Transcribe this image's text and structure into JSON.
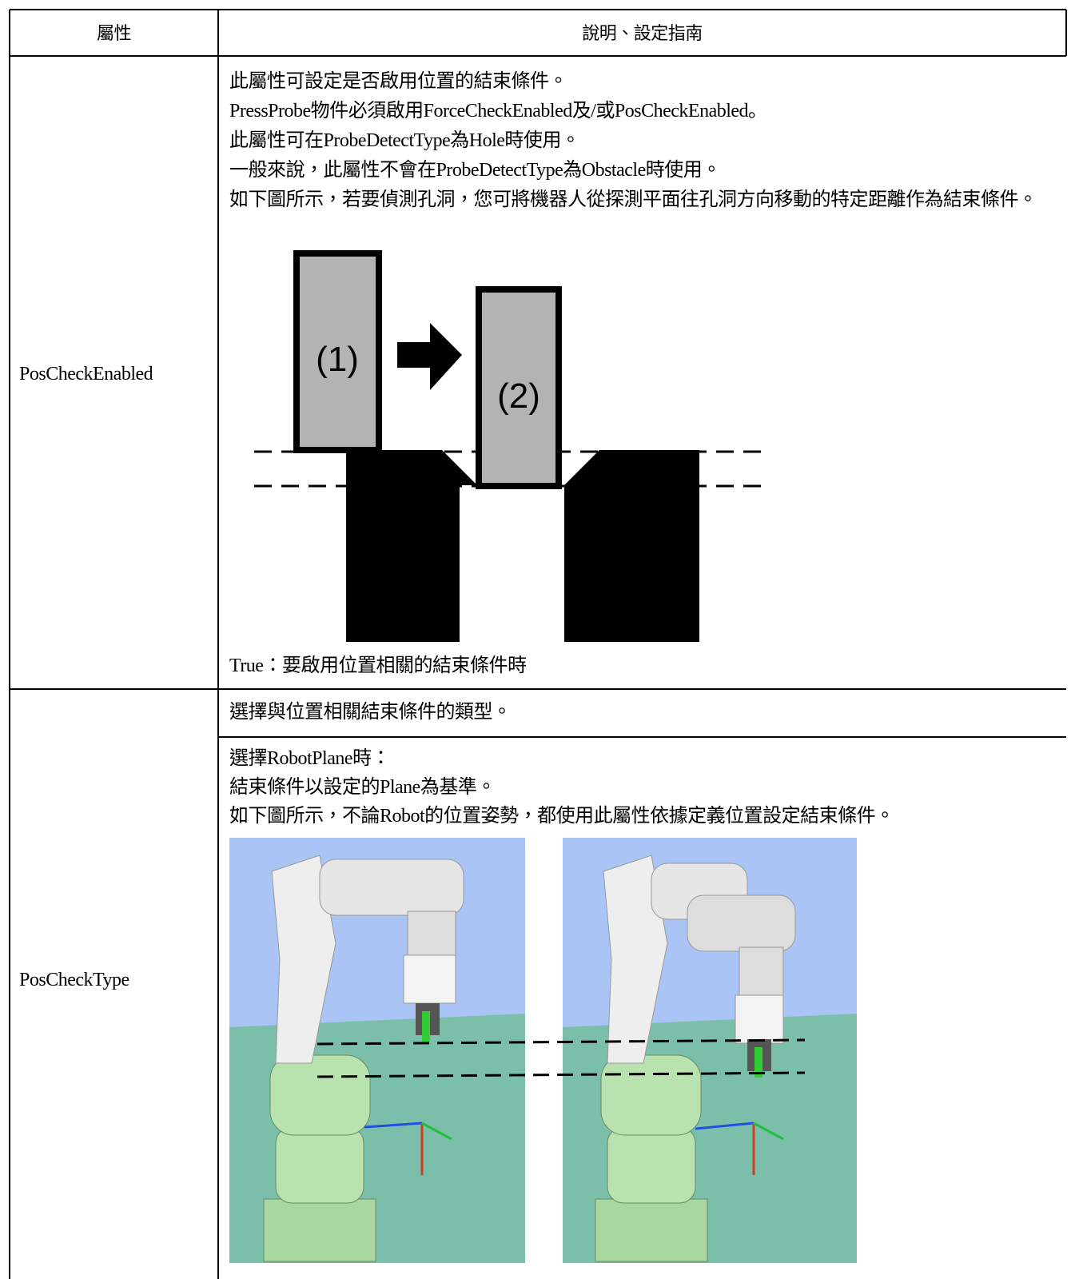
{
  "table": {
    "header": [
      "屬性",
      "說明、設定指南"
    ],
    "rows": [
      {
        "property": "PosCheckEnabled",
        "description": [
          "此屬性可設定是否啟用位置的結束條件。",
          "PressProbe物件必須啟用ForceCheckEnabled及/或PosCheckEnabled。",
          "此屬性可在ProbeDetectType為Hole時使用。",
          "一般來說，此屬性不會在ProbeDetectType為Obstacle時使用。",
          "如下圖所示，若要偵測孔洞，您可將機器人從探測平面往孔洞方向移動的特定距離作為結束條件。"
        ],
        "figure_labels": [
          "(1)",
          "(2)"
        ],
        "note": "True：要啟用位置相關的結束條件時"
      },
      {
        "property": "PosCheckType",
        "summary": "選擇與位置相關結束條件的類型。",
        "details": [
          "選擇RobotPlane時：",
          "結束條件以設定的Plane為基準。",
          "如下圖所示，不論Robot的位置姿勢，都使用此屬性依據定義位置設定結束條件。"
        ]
      }
    ]
  }
}
